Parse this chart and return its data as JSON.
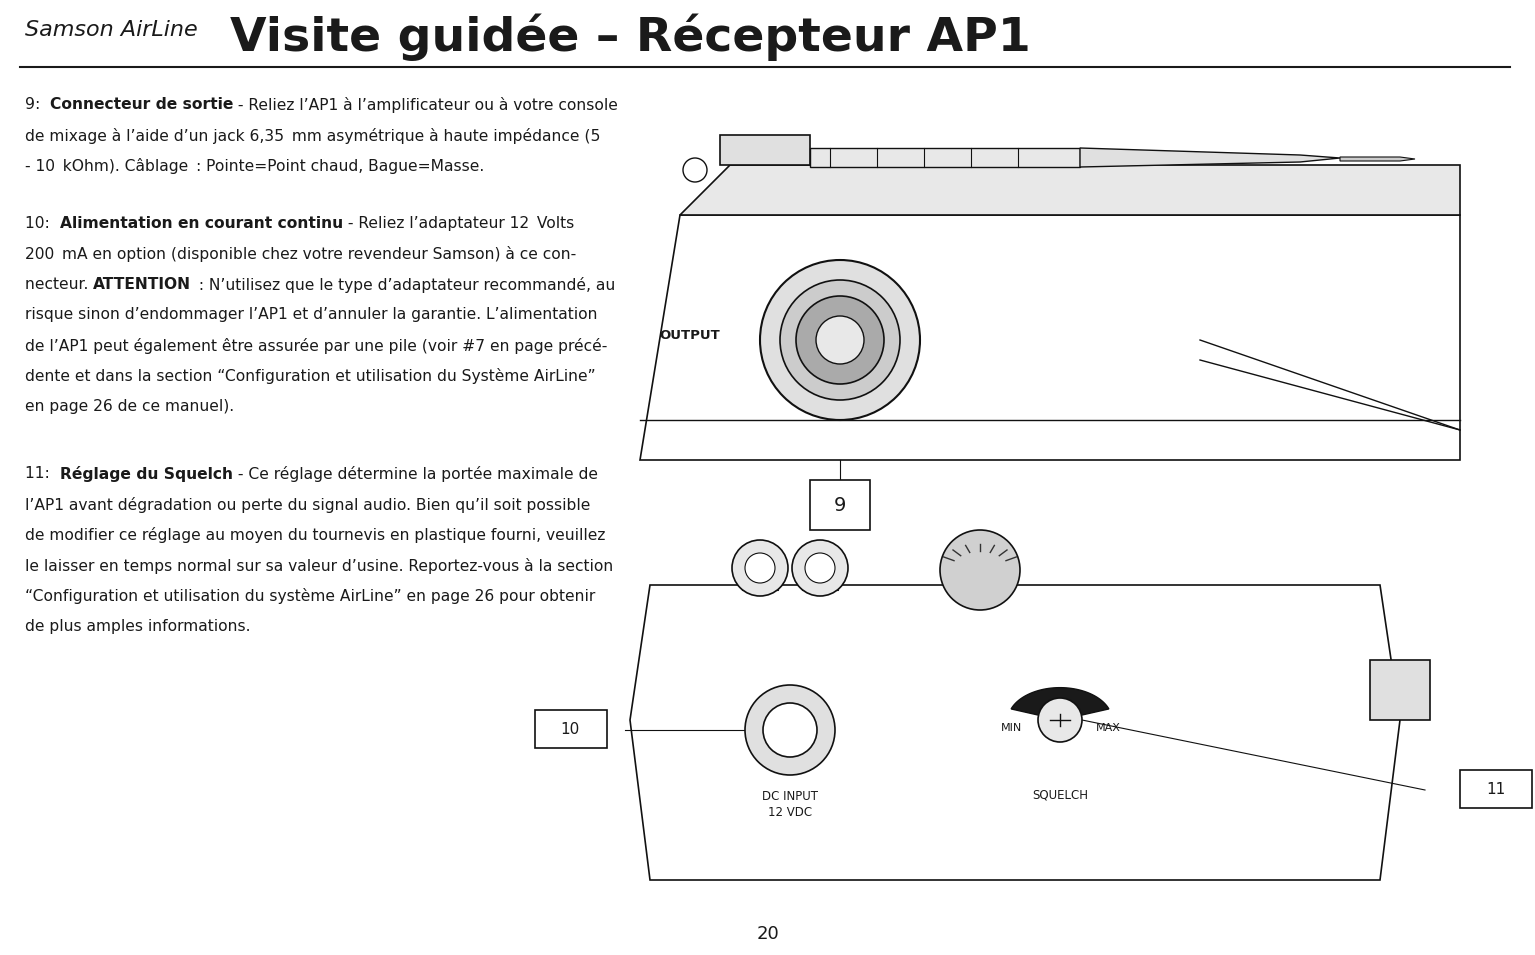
{
  "bg_color": "#ffffff",
  "title_italic": "Samson AirLine",
  "title_bold": "Visite guidée – Récepteur AP1",
  "page_number": "20",
  "text_color": "#1a1a1a",
  "line_color": "#1a1a1a",
  "section9_head": "9:  Connecteur de sortie",
  "section9_lines": [
    "9:  |Connecteur de sortie| - Reliez l’AP1 à l’amplificateur ou à votre console",
    "de mixage à l’aide d’un jack 6,35 mm asymétrique à haute impédance (5",
    "- 10 kOhm). Câblage : Pointe=Point chaud, Bague=Masse."
  ],
  "section10_lines": [
    "10:  |Alimentation en courant continu| - Reliez l’adaptateur 12 Volts",
    "200 mA en option (disponible chez votre revendeur Samson) à ce con-",
    "necteur. |ATTENTION| : N’utilisez que le type d’adaptateur recommandé, au",
    "risque sinon d’endommager l’AP1 et d’annuler la garantie. L’alimentation",
    "de l’AP1 peut également être assurée par une pile (voir #7 en page précé-",
    "dente et dans la section “Configuration et utilisation du Système AirLine”",
    "en page 26 de ce manuel)."
  ],
  "section11_lines": [
    "11:  |Réglage du Squelch| - Ce réglage détermine la portée maximale de",
    "l’AP1 avant dégradation ou perte du signal audio. Bien qu’il soit possible",
    "de modifier ce réglage au moyen du tournevis en plastique fourni, veuillez",
    "le laisser en temps normal sur sa valeur d’usine. Reportez-vous à la section",
    "“Configuration et utilisation du système AirLine” en page 26 pour obtenir",
    "de plus amples informations."
  ]
}
